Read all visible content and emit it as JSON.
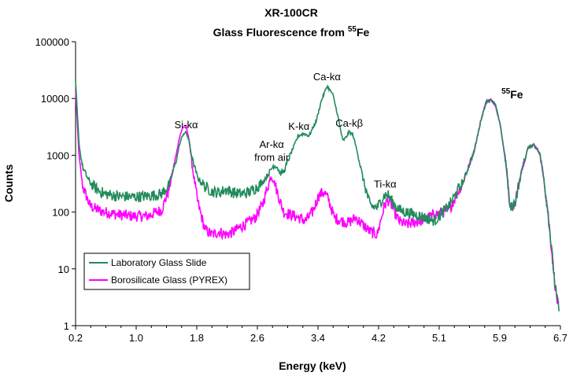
{
  "chart_data": {
    "type": "line",
    "title": "XR-100CR",
    "subtitle": "Glass Fluorescence from ⁵⁵Fe",
    "subtitle_main": "Glass Fluorescence from ",
    "subtitle_sup": "55",
    "subtitle_end": "Fe",
    "xlabel": "Energy (keV)",
    "ylabel": "Counts",
    "xlim": [
      0.2,
      6.95
    ],
    "ylim": [
      1,
      100000
    ],
    "yscale": "log",
    "x_ticks": [
      "0.2",
      "1.0",
      "1.8",
      "2.6",
      "3.4",
      "4.2",
      "5.1",
      "5.9",
      "6.7"
    ],
    "y_ticks": [
      "1",
      "10",
      "100",
      "1000",
      "10000",
      "100000"
    ],
    "grid": false,
    "legend": "bottom-left",
    "annotations": [
      {
        "text": "Si-kα",
        "x": 1.74,
        "y": 3000
      },
      {
        "text": "Ar-kα",
        "x": 2.93,
        "y": 1350
      },
      {
        "text": "from air",
        "x": 2.93,
        "y": 800
      },
      {
        "text": "K-kα",
        "x": 3.31,
        "y": 2800
      },
      {
        "text": "Ca-kα",
        "x": 3.7,
        "y": 21000
      },
      {
        "text": "Ca-kβ",
        "x": 4.01,
        "y": 3200
      },
      {
        "text": "Ti-kα",
        "x": 4.51,
        "y": 270
      },
      {
        "text": "Fe",
        "sup": "55",
        "x": 6.28,
        "y": 10000
      }
    ],
    "series": [
      {
        "name": "Laboratory Glass Slide",
        "color": "#228b5b",
        "x": [
          0.2,
          0.25,
          0.3,
          0.4,
          0.5,
          0.6,
          0.8,
          1.0,
          1.2,
          1.4,
          1.5,
          1.6,
          1.65,
          1.7,
          1.74,
          1.78,
          1.82,
          1.9,
          2.0,
          2.1,
          2.2,
          2.3,
          2.4,
          2.5,
          2.6,
          2.7,
          2.8,
          2.9,
          2.95,
          3.0,
          3.05,
          3.1,
          3.2,
          3.3,
          3.38,
          3.45,
          3.55,
          3.62,
          3.7,
          3.78,
          3.85,
          3.92,
          3.97,
          4.01,
          4.06,
          4.12,
          4.2,
          4.3,
          4.4,
          4.5,
          4.55,
          4.6,
          4.7,
          4.8,
          5.0,
          5.2,
          5.4,
          5.6,
          5.75,
          5.85,
          5.92,
          5.99,
          6.05,
          6.12,
          6.2,
          6.25,
          6.32,
          6.42,
          6.5,
          6.58,
          6.66,
          6.72,
          6.78,
          6.83,
          6.87,
          6.9,
          6.93
        ],
        "y": [
          20000,
          1500,
          600,
          330,
          250,
          210,
          190,
          185,
          190,
          210,
          300,
          800,
          1600,
          2400,
          2500,
          1800,
          900,
          400,
          280,
          230,
          220,
          250,
          220,
          210,
          220,
          260,
          330,
          500,
          650,
          650,
          480,
          520,
          1100,
          2200,
          2400,
          2200,
          4000,
          9000,
          16500,
          12000,
          5000,
          1800,
          2100,
          2600,
          2300,
          1200,
          400,
          130,
          120,
          200,
          200,
          160,
          110,
          100,
          85,
          70,
          130,
          350,
          1200,
          4500,
          9000,
          9500,
          7500,
          3000,
          600,
          110,
          150,
          600,
          1350,
          1550,
          1100,
          400,
          90,
          20,
          6,
          3,
          2
        ]
      },
      {
        "name": "Borosilicate Glass (PYREX)",
        "color": "#ff00ff",
        "x": [
          0.2,
          0.25,
          0.3,
          0.4,
          0.5,
          0.6,
          0.8,
          1.0,
          1.2,
          1.4,
          1.5,
          1.6,
          1.65,
          1.7,
          1.74,
          1.78,
          1.82,
          1.9,
          2.0,
          2.1,
          2.2,
          2.3,
          2.4,
          2.5,
          2.6,
          2.7,
          2.8,
          2.85,
          2.92,
          2.97,
          3.05,
          3.1,
          3.2,
          3.3,
          3.4,
          3.5,
          3.58,
          3.65,
          3.72,
          3.8,
          3.9,
          4.0,
          4.1,
          4.2,
          4.3,
          4.4,
          4.5,
          4.55,
          4.6,
          4.7,
          4.8,
          5.0,
          5.2,
          5.4,
          5.6,
          5.75,
          5.85,
          5.92,
          5.99,
          6.05,
          6.12,
          6.2,
          6.25,
          6.32,
          6.42,
          6.5,
          6.58,
          6.66,
          6.72,
          6.78,
          6.83,
          6.87,
          6.9,
          6.93
        ],
        "y": [
          14000,
          900,
          280,
          130,
          110,
          100,
          90,
          85,
          85,
          110,
          250,
          1000,
          2200,
          3200,
          3100,
          1900,
          700,
          150,
          50,
          40,
          45,
          40,
          45,
          55,
          65,
          80,
          130,
          220,
          430,
          330,
          150,
          100,
          90,
          80,
          70,
          100,
          190,
          230,
          170,
          80,
          70,
          65,
          80,
          60,
          45,
          40,
          130,
          160,
          130,
          70,
          60,
          70,
          90,
          110,
          350,
          1200,
          4500,
          9000,
          9500,
          7500,
          3000,
          600,
          110,
          150,
          600,
          1350,
          1550,
          1100,
          400,
          90,
          20,
          6,
          3,
          2
        ]
      }
    ]
  }
}
